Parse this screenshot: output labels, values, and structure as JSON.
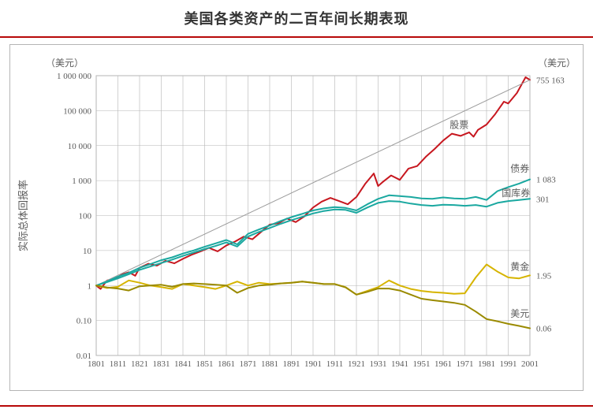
{
  "title": "美国各类资产的二百年间长期表现",
  "rule_color": "#b70808",
  "rule_thickness": 2,
  "chart": {
    "type": "line",
    "background_color": "#ffffff",
    "frame_color": "#b5b5b5",
    "grid_color": "#b5b5b5",
    "axis_text_color": "#5a5a5a",
    "label_text_color": "#5a5a5a",
    "title_fontsize": 18,
    "axis_fontsize": 12,
    "tick_fontsize": 11,
    "ylabel": "实际总体回报率",
    "left_unit": "（美元）",
    "right_unit": "（美元）",
    "xlim": [
      1801,
      2001
    ],
    "xticks": [
      1801,
      1811,
      1821,
      1831,
      1841,
      1851,
      1861,
      1871,
      1881,
      1891,
      1901,
      1911,
      1921,
      1931,
      1941,
      1951,
      1961,
      1971,
      1981,
      1991,
      2001
    ],
    "ylim_log10": [
      -2,
      6
    ],
    "yticks_log10": [
      -2,
      -1,
      0,
      1,
      2,
      3,
      4,
      5,
      6
    ],
    "ytick_labels": [
      "0.01",
      "0.10",
      "1",
      "10",
      "100",
      "1 000",
      "10 000",
      "100 000",
      "1 000 000"
    ],
    "series": [
      {
        "name": "股票",
        "label": "股票",
        "color": "#c7171f",
        "width": 2,
        "end_value_label": "755 163",
        "label_x": 1964,
        "label_y_log10": 4.5,
        "data": [
          [
            1801,
            1.0
          ],
          [
            1803,
            0.8
          ],
          [
            1806,
            1.4
          ],
          [
            1810,
            1.6
          ],
          [
            1813,
            2.1
          ],
          [
            1816,
            2.4
          ],
          [
            1819,
            1.9
          ],
          [
            1821,
            3.2
          ],
          [
            1825,
            4.2
          ],
          [
            1829,
            3.7
          ],
          [
            1833,
            5.1
          ],
          [
            1837,
            4.3
          ],
          [
            1841,
            5.8
          ],
          [
            1845,
            7.6
          ],
          [
            1849,
            9.4
          ],
          [
            1853,
            12
          ],
          [
            1857,
            9.5
          ],
          [
            1861,
            14
          ],
          [
            1865,
            18
          ],
          [
            1869,
            25
          ],
          [
            1873,
            21
          ],
          [
            1877,
            34
          ],
          [
            1881,
            55
          ],
          [
            1885,
            60
          ],
          [
            1889,
            82
          ],
          [
            1893,
            65
          ],
          [
            1897,
            95
          ],
          [
            1901,
            170
          ],
          [
            1905,
            250
          ],
          [
            1909,
            320
          ],
          [
            1913,
            260
          ],
          [
            1917,
            210
          ],
          [
            1921,
            340
          ],
          [
            1925,
            800
          ],
          [
            1929,
            1600
          ],
          [
            1931,
            700
          ],
          [
            1933,
            900
          ],
          [
            1937,
            1400
          ],
          [
            1941,
            1050
          ],
          [
            1945,
            2200
          ],
          [
            1949,
            2600
          ],
          [
            1953,
            4800
          ],
          [
            1957,
            8000
          ],
          [
            1961,
            14000
          ],
          [
            1965,
            22000
          ],
          [
            1969,
            19000
          ],
          [
            1973,
            24000
          ],
          [
            1975,
            18000
          ],
          [
            1977,
            28000
          ],
          [
            1981,
            40000
          ],
          [
            1985,
            80000
          ],
          [
            1989,
            180000
          ],
          [
            1991,
            160000
          ],
          [
            1995,
            320000
          ],
          [
            1999,
            900000
          ],
          [
            2001,
            755163
          ]
        ]
      },
      {
        "name": "股票趋势",
        "color": "#9c9c9c",
        "width": 1,
        "is_trend": true,
        "data": [
          [
            1801,
            1.0
          ],
          [
            2001,
            755163
          ]
        ]
      },
      {
        "name": "债券",
        "label": "债券",
        "color": "#1aa8a0",
        "width": 2,
        "end_value_label": "1 083",
        "label_x": 1992,
        "label_y_log10": 3.25,
        "data": [
          [
            1801,
            1.0
          ],
          [
            1806,
            1.3
          ],
          [
            1811,
            1.8
          ],
          [
            1816,
            2.3
          ],
          [
            1821,
            3.2
          ],
          [
            1826,
            4.1
          ],
          [
            1831,
            5.3
          ],
          [
            1836,
            6.4
          ],
          [
            1841,
            8.2
          ],
          [
            1846,
            10.1
          ],
          [
            1851,
            12.8
          ],
          [
            1856,
            16
          ],
          [
            1861,
            20
          ],
          [
            1866,
            15
          ],
          [
            1871,
            30
          ],
          [
            1876,
            40
          ],
          [
            1881,
            52
          ],
          [
            1886,
            70
          ],
          [
            1891,
            90
          ],
          [
            1896,
            112
          ],
          [
            1901,
            140
          ],
          [
            1906,
            160
          ],
          [
            1911,
            175
          ],
          [
            1916,
            165
          ],
          [
            1921,
            140
          ],
          [
            1926,
            210
          ],
          [
            1931,
            300
          ],
          [
            1936,
            380
          ],
          [
            1941,
            360
          ],
          [
            1946,
            340
          ],
          [
            1951,
            310
          ],
          [
            1956,
            300
          ],
          [
            1961,
            330
          ],
          [
            1966,
            310
          ],
          [
            1971,
            300
          ],
          [
            1976,
            340
          ],
          [
            1981,
            280
          ],
          [
            1986,
            500
          ],
          [
            1991,
            650
          ],
          [
            1996,
            820
          ],
          [
            2001,
            1083
          ]
        ]
      },
      {
        "name": "国库券",
        "label": "国库券",
        "color": "#1aa8a0",
        "width": 2,
        "end_value_label": "301",
        "label_x": 1988,
        "label_y_log10": 2.55,
        "data": [
          [
            1801,
            1.0
          ],
          [
            1806,
            1.25
          ],
          [
            1811,
            1.6
          ],
          [
            1816,
            2.1
          ],
          [
            1821,
            2.8
          ],
          [
            1826,
            3.5
          ],
          [
            1831,
            4.4
          ],
          [
            1836,
            5.5
          ],
          [
            1841,
            7.0
          ],
          [
            1846,
            8.8
          ],
          [
            1851,
            11
          ],
          [
            1856,
            13.5
          ],
          [
            1861,
            17
          ],
          [
            1866,
            13
          ],
          [
            1871,
            25
          ],
          [
            1876,
            34
          ],
          [
            1881,
            44
          ],
          [
            1886,
            58
          ],
          [
            1891,
            74
          ],
          [
            1896,
            92
          ],
          [
            1901,
            115
          ],
          [
            1906,
            135
          ],
          [
            1911,
            150
          ],
          [
            1916,
            145
          ],
          [
            1921,
            120
          ],
          [
            1926,
            170
          ],
          [
            1931,
            230
          ],
          [
            1936,
            260
          ],
          [
            1941,
            250
          ],
          [
            1946,
            220
          ],
          [
            1951,
            200
          ],
          [
            1956,
            190
          ],
          [
            1961,
            205
          ],
          [
            1966,
            200
          ],
          [
            1971,
            190
          ],
          [
            1976,
            200
          ],
          [
            1981,
            180
          ],
          [
            1986,
            230
          ],
          [
            1991,
            260
          ],
          [
            1996,
            280
          ],
          [
            2001,
            301
          ]
        ]
      },
      {
        "name": "黄金",
        "label": "黄金",
        "color": "#d6b400",
        "width": 2,
        "end_value_label": "1.95",
        "label_x": 1992,
        "label_y_log10": 0.45,
        "data": [
          [
            1801,
            1.0
          ],
          [
            1806,
            0.85
          ],
          [
            1811,
            0.92
          ],
          [
            1816,
            1.4
          ],
          [
            1821,
            1.2
          ],
          [
            1826,
            1.0
          ],
          [
            1831,
            0.9
          ],
          [
            1836,
            0.8
          ],
          [
            1841,
            1.1
          ],
          [
            1846,
            1.0
          ],
          [
            1851,
            0.9
          ],
          [
            1856,
            0.8
          ],
          [
            1861,
            1.0
          ],
          [
            1866,
            1.3
          ],
          [
            1871,
            1.0
          ],
          [
            1876,
            1.2
          ],
          [
            1881,
            1.1
          ],
          [
            1886,
            1.15
          ],
          [
            1891,
            1.2
          ],
          [
            1896,
            1.3
          ],
          [
            1901,
            1.2
          ],
          [
            1906,
            1.1
          ],
          [
            1911,
            1.1
          ],
          [
            1916,
            0.9
          ],
          [
            1921,
            0.55
          ],
          [
            1926,
            0.7
          ],
          [
            1931,
            0.9
          ],
          [
            1936,
            1.4
          ],
          [
            1941,
            1.0
          ],
          [
            1946,
            0.8
          ],
          [
            1951,
            0.7
          ],
          [
            1956,
            0.65
          ],
          [
            1961,
            0.62
          ],
          [
            1966,
            0.58
          ],
          [
            1971,
            0.6
          ],
          [
            1976,
            1.7
          ],
          [
            1981,
            4.0
          ],
          [
            1986,
            2.5
          ],
          [
            1991,
            1.7
          ],
          [
            1996,
            1.6
          ],
          [
            2001,
            1.95
          ]
        ]
      },
      {
        "name": "美元",
        "label": "美元",
        "color": "#9a8a00",
        "width": 2,
        "end_value_label": "0.06",
        "label_x": 1992,
        "label_y_log10": -0.9,
        "data": [
          [
            1801,
            1.0
          ],
          [
            1806,
            0.88
          ],
          [
            1811,
            0.82
          ],
          [
            1816,
            0.72
          ],
          [
            1821,
            0.95
          ],
          [
            1826,
            1.0
          ],
          [
            1831,
            1.05
          ],
          [
            1836,
            0.92
          ],
          [
            1841,
            1.1
          ],
          [
            1846,
            1.15
          ],
          [
            1851,
            1.1
          ],
          [
            1856,
            1.05
          ],
          [
            1861,
            1.0
          ],
          [
            1866,
            0.62
          ],
          [
            1871,
            0.85
          ],
          [
            1876,
            1.0
          ],
          [
            1881,
            1.05
          ],
          [
            1886,
            1.15
          ],
          [
            1891,
            1.2
          ],
          [
            1896,
            1.3
          ],
          [
            1901,
            1.2
          ],
          [
            1906,
            1.1
          ],
          [
            1911,
            1.1
          ],
          [
            1916,
            0.88
          ],
          [
            1921,
            0.55
          ],
          [
            1926,
            0.66
          ],
          [
            1931,
            0.82
          ],
          [
            1936,
            0.82
          ],
          [
            1941,
            0.72
          ],
          [
            1946,
            0.55
          ],
          [
            1951,
            0.42
          ],
          [
            1956,
            0.38
          ],
          [
            1961,
            0.35
          ],
          [
            1966,
            0.32
          ],
          [
            1971,
            0.28
          ],
          [
            1976,
            0.18
          ],
          [
            1981,
            0.11
          ],
          [
            1986,
            0.095
          ],
          [
            1991,
            0.08
          ],
          [
            1996,
            0.07
          ],
          [
            2001,
            0.06
          ]
        ]
      }
    ]
  }
}
